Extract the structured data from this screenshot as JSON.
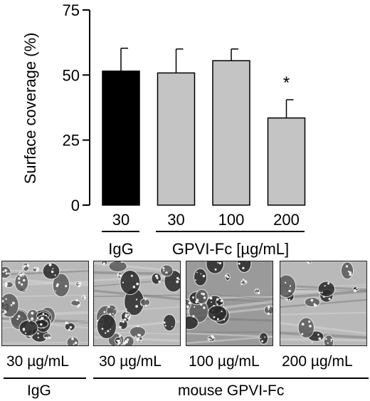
{
  "chart_data": {
    "type": "bar",
    "ylabel": "Surface coverage (%)",
    "ylim": [
      0,
      75
    ],
    "yticks": [
      "0",
      "25",
      "50",
      "75"
    ],
    "categories": [
      "30",
      "30",
      "100",
      "200"
    ],
    "values": [
      51.5,
      50.8,
      55.5,
      33.5
    ],
    "errors": [
      8.8,
      9.2,
      4.5,
      7.0
    ],
    "bar_colors": [
      "#000000",
      "#c4c4c4",
      "#c4c4c4",
      "#c4c4c4"
    ],
    "significance": [
      "",
      "",
      "",
      "*"
    ],
    "groups": [
      {
        "label": "IgG"
      },
      {
        "label": "GPVI-Fc [µg/mL]"
      }
    ]
  },
  "images": {
    "captions": [
      "30 µg/mL",
      "30 µg/mL",
      "100 µg/mL",
      "200 µg/mL"
    ],
    "groups": [
      "IgG",
      "mouse GPVI-Fc"
    ]
  }
}
